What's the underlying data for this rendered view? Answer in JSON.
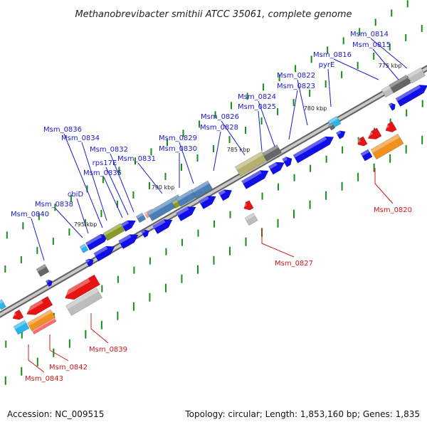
{
  "title": "Methanobrevibacter smithii ATCC 35061, complete genome",
  "footer": {
    "accession": "Accession: NC_009515",
    "summary": "Topology: circular; Length: 1,853,160 bp; Genes: 1,835"
  },
  "scale_labels": [
    "775 kbp",
    "780 kbp",
    "785 kbp",
    "790 kbp",
    "795 kbp"
  ],
  "forward_gene_labels": [
    "Msm_0814",
    "Msm_0815",
    "Msm_0816",
    "pyrE",
    "Msm_0822",
    "Msm_0823",
    "Msm_0824",
    "Msm_0825",
    "Msm_0826",
    "Msm_0828",
    "Msm_0829",
    "Msm_0830",
    "Msm_0831",
    "Msm_0832",
    "rps17E",
    "Msm_0834",
    "Msm_0835",
    "Msm_0836",
    "cbiD",
    "Msm_0838",
    "Msm_0840"
  ],
  "reverse_gene_labels": [
    "Msm_0820",
    "Msm_0827",
    "Msm_0839",
    "Msm_0842",
    "Msm_0843"
  ],
  "colors": {
    "forward_strand": "#1010e6",
    "reverse_strand": "#e61414",
    "backbone": "#808080",
    "tick": "#1a8c1a",
    "leader_forward": "#1a1acc",
    "leader_reverse": "#cc1a1a",
    "steelblue": "#4a7fb5",
    "olive": "#8a9a2a",
    "khaki": "#b5b070",
    "orange": "#f0901e",
    "cyan": "#2ab4ec",
    "darkgray": "#666666",
    "lightgray": "#bdbdbd"
  }
}
